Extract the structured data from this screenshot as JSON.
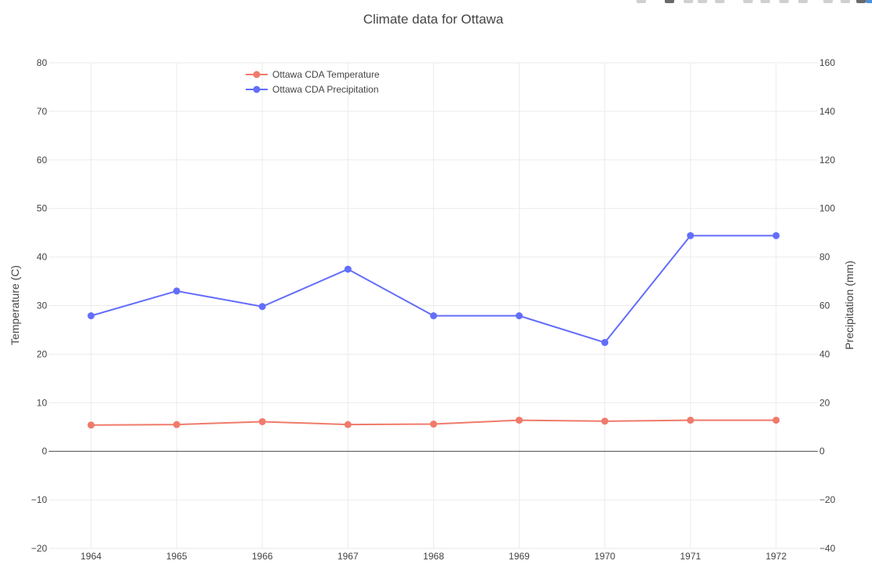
{
  "chart_data": {
    "type": "line",
    "title": "Climate data for Ottawa",
    "categories": [
      "1964",
      "1965",
      "1966",
      "1967",
      "1968",
      "1969",
      "1970",
      "1971",
      "1972"
    ],
    "y_left": {
      "label": "Temperature (C)",
      "range": [
        -20,
        80
      ],
      "ticks": [
        -20,
        -10,
        0,
        10,
        20,
        30,
        40,
        50,
        60,
        70,
        80
      ]
    },
    "y_right": {
      "label": "Precipitation (mm)",
      "range": [
        -40,
        160
      ],
      "ticks": [
        -40,
        -20,
        0,
        20,
        40,
        60,
        80,
        100,
        120,
        140,
        160
      ]
    },
    "grid": true,
    "legend_position": "top-left",
    "series": [
      {
        "name": "Ottawa CDA Temperature",
        "axis": "left",
        "color": "#ef7b6b",
        "values": [
          5.4,
          5.5,
          6.1,
          5.5,
          5.6,
          6.4,
          6.2,
          6.4,
          6.4
        ]
      },
      {
        "name": "Ottawa CDA Precipitation",
        "axis": "right",
        "color": "#636efa",
        "values": [
          55.8,
          66.0,
          59.6,
          75.0,
          55.8,
          55.8,
          44.8,
          88.8,
          88.8
        ]
      }
    ]
  },
  "ui": {
    "minus_sign": "−",
    "modebar_icons": [
      "camera-icon",
      "zoom-icon",
      "pan-icon",
      "box-select-icon",
      "lasso-icon",
      "zoom-in-icon",
      "zoom-out-icon",
      "autoscale-icon",
      "reset-axes-icon",
      "spike-lines-icon",
      "hover-closest-icon",
      "hover-compare-icon",
      "plotly-logo-icon"
    ]
  }
}
